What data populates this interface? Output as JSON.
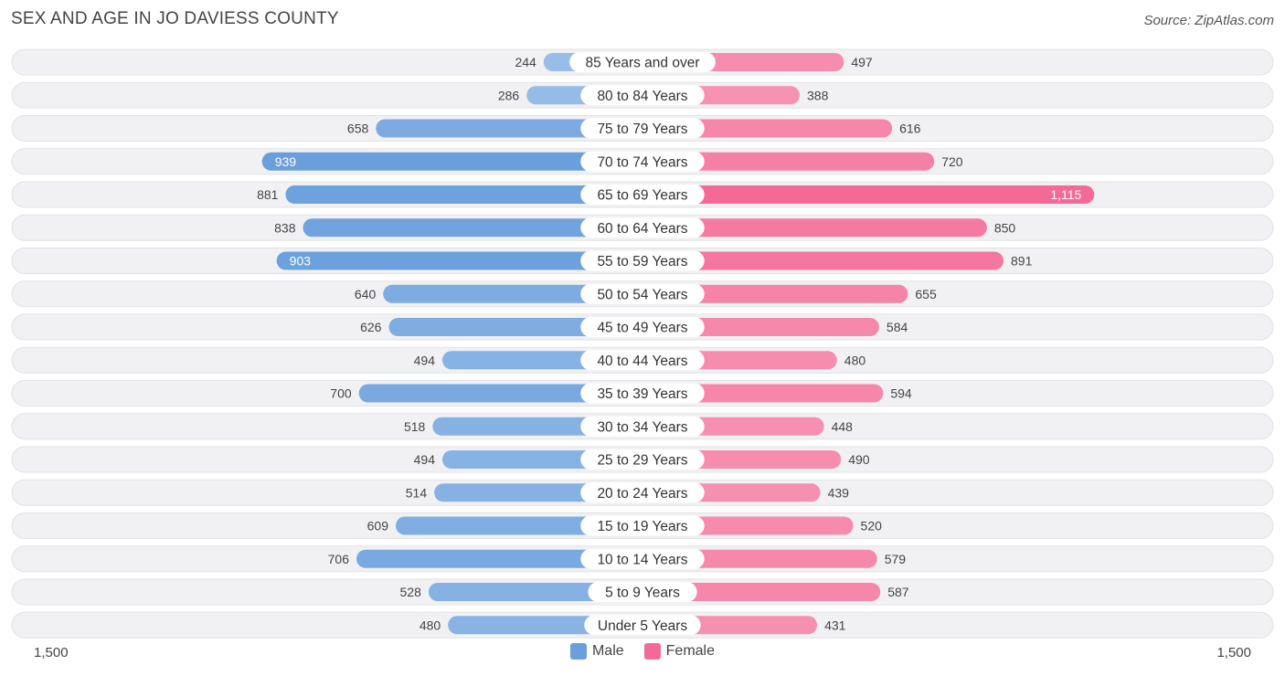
{
  "header": {
    "title": "SEX AND AGE IN JO DAVIESS COUNTY",
    "source": "Source: ZipAtlas.com"
  },
  "colors": {
    "male": "#6a9fdc",
    "male_light": "#a8c8ec",
    "female": "#f46a97",
    "female_light": "#f8a8c2",
    "row_bg": "#f1f1f3"
  },
  "legend": {
    "male_label": "Male",
    "female_label": "Female"
  },
  "axis": {
    "left_label": "1,500",
    "right_label": "1,500"
  },
  "chart_data": {
    "type": "bar",
    "orientation": "horizontal-diverging",
    "title": "SEX AND AGE IN JO DAVIESS COUNTY",
    "xlim": [
      0,
      1500
    ],
    "categories": [
      "85 Years and over",
      "80 to 84 Years",
      "75 to 79 Years",
      "70 to 74 Years",
      "65 to 69 Years",
      "60 to 64 Years",
      "55 to 59 Years",
      "50 to 54 Years",
      "45 to 49 Years",
      "40 to 44 Years",
      "35 to 39 Years",
      "30 to 34 Years",
      "25 to 29 Years",
      "20 to 24 Years",
      "15 to 19 Years",
      "10 to 14 Years",
      "5 to 9 Years",
      "Under 5 Years"
    ],
    "series": [
      {
        "name": "Male",
        "values": [
          244,
          286,
          658,
          939,
          881,
          838,
          903,
          640,
          626,
          494,
          700,
          518,
          494,
          514,
          609,
          706,
          528,
          480
        ],
        "labels": [
          "244",
          "286",
          "658",
          "939",
          "881",
          "838",
          "903",
          "640",
          "626",
          "494",
          "700",
          "518",
          "494",
          "514",
          "609",
          "706",
          "528",
          "480"
        ]
      },
      {
        "name": "Female",
        "values": [
          497,
          388,
          616,
          720,
          1115,
          850,
          891,
          655,
          584,
          480,
          594,
          448,
          490,
          439,
          520,
          579,
          587,
          431
        ],
        "labels": [
          "497",
          "388",
          "616",
          "720",
          "1,115",
          "850",
          "891",
          "655",
          "584",
          "480",
          "594",
          "448",
          "490",
          "439",
          "520",
          "579",
          "587",
          "431"
        ]
      }
    ],
    "legend_position": "bottom-center"
  }
}
